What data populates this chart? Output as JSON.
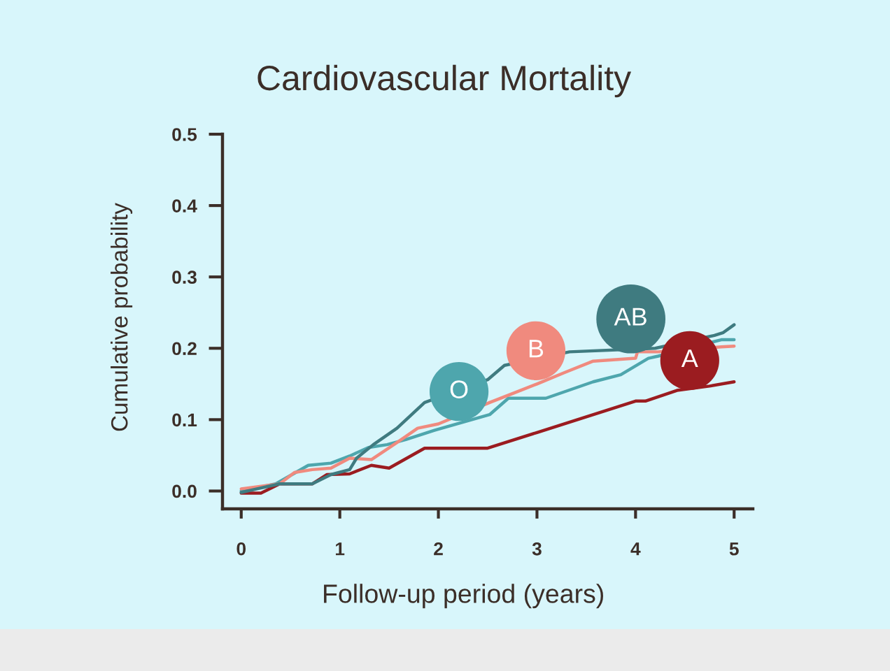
{
  "chart_data": {
    "type": "line",
    "title": "Cardiovascular Mortality",
    "xlabel": "Follow-up period (years)",
    "ylabel": "Cumulative probability",
    "xlim": [
      -0.19,
      5.19
    ],
    "ylim": [
      -0.025,
      0.5
    ],
    "xticks": [
      0,
      1,
      2,
      3,
      4,
      5
    ],
    "yticks": [
      {
        "value": 0,
        "label": "0.0"
      },
      0.1,
      0.2,
      0.3,
      0.4,
      0.5
    ],
    "series": [
      {
        "name": "O",
        "color": "#4ea6ad",
        "x": [
          0,
          0.35,
          0.68,
          0.91,
          1.1,
          1.29,
          1.48,
          1.67,
          1.96,
          2.52,
          2.71,
          3.09,
          3.57,
          3.85,
          4.13,
          4.23,
          4.87,
          5.0
        ],
        "values": [
          0.0,
          0.01,
          0.036,
          0.039,
          0.049,
          0.061,
          0.065,
          0.072,
          0.085,
          0.107,
          0.13,
          0.13,
          0.153,
          0.163,
          0.186,
          0.189,
          0.212,
          0.212
        ]
      },
      {
        "name": "A",
        "color": "#9b1c20",
        "x": [
          0,
          0.2,
          0.39,
          0.72,
          0.87,
          1.1,
          1.32,
          1.5,
          1.86,
          2.5,
          3.0,
          3.5,
          4.0,
          4.1,
          4.42,
          4.75,
          5.0
        ],
        "values": [
          -0.003,
          -0.003,
          0.01,
          0.01,
          0.023,
          0.024,
          0.036,
          0.032,
          0.06,
          0.06,
          0.082,
          0.104,
          0.126,
          0.126,
          0.141,
          0.147,
          0.153
        ]
      },
      {
        "name": "B",
        "color": "#f08a7e",
        "x": [
          0,
          0.39,
          0.54,
          0.72,
          0.91,
          1.1,
          1.32,
          1.58,
          1.79,
          2.0,
          2.52,
          2.76,
          3.0,
          3.28,
          3.57,
          4.0,
          4.02,
          4.23,
          4.87,
          5.0
        ],
        "values": [
          0.003,
          0.01,
          0.026,
          0.03,
          0.032,
          0.046,
          0.044,
          0.068,
          0.088,
          0.094,
          0.124,
          0.137,
          0.15,
          0.166,
          0.182,
          0.186,
          0.195,
          0.195,
          0.202,
          0.203
        ]
      },
      {
        "name": "AB",
        "color": "#3f7b80",
        "x": [
          0,
          0.16,
          0.39,
          0.72,
          0.91,
          1.1,
          1.17,
          1.34,
          1.58,
          1.86,
          2.5,
          2.67,
          3.33,
          4.2,
          4.8,
          4.89,
          5.0
        ],
        "values": [
          -0.002,
          0.003,
          0.01,
          0.01,
          0.023,
          0.03,
          0.046,
          0.065,
          0.088,
          0.124,
          0.156,
          0.176,
          0.195,
          0.2,
          0.218,
          0.222,
          0.233
        ]
      }
    ]
  }
}
